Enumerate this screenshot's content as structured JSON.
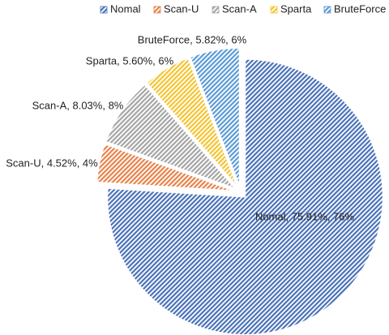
{
  "chart_data": {
    "type": "pie",
    "title": "",
    "categories": [
      "Nomal",
      "Scan-U",
      "Scan-A",
      "Sparta",
      "BruteForce"
    ],
    "values": [
      75.91,
      4.52,
      8.03,
      5.6,
      5.82
    ],
    "data_labels": [
      "Nomal, 75.91%, 76%",
      "Scan-U, 4.52%, 4%",
      "Scan-A, 8.03%, 8%",
      "Sparta, 5.60%, 6%",
      "BruteForce, 5.82%, 6%"
    ],
    "colors": [
      "#4a72b8",
      "#e8824a",
      "#a5a5a5",
      "#f4c430",
      "#5b9bd5"
    ],
    "fill_pattern": "diagonal-hatch",
    "start_angle": "12 o'clock",
    "direction": "clockwise",
    "exploded": true,
    "legend": {
      "placement": "top",
      "entries": [
        "Nomal",
        "Scan-U",
        "Scan-A",
        "Sparta",
        "BruteForce"
      ]
    }
  }
}
